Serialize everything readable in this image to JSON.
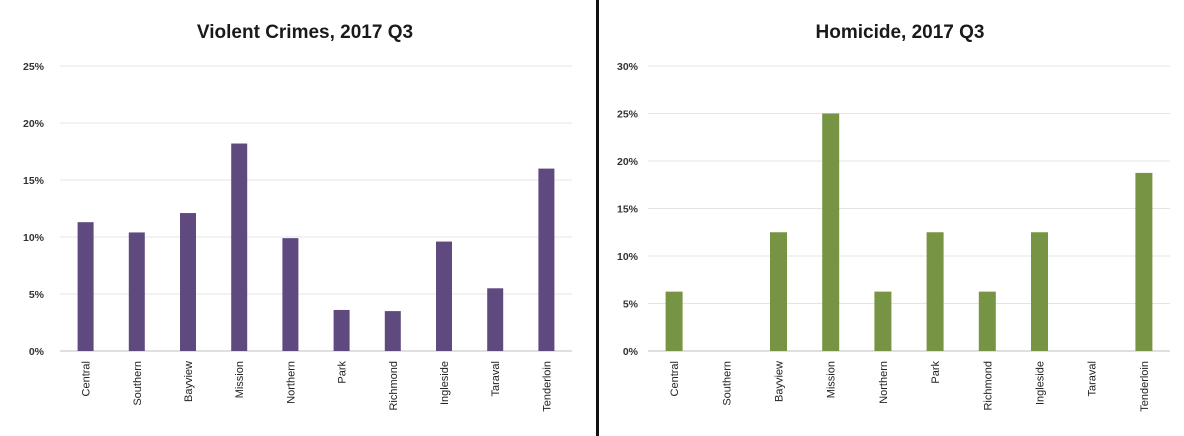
{
  "chart_data": [
    {
      "type": "bar",
      "title": "Violent Crimes, 2017 Q3",
      "categories": [
        "Central",
        "Southern",
        "Bayview",
        "Mission",
        "Northern",
        "Park",
        "Richmond",
        "Ingleside",
        "Taraval",
        "Tenderloin"
      ],
      "values": [
        11.3,
        10.4,
        12.1,
        18.2,
        9.9,
        3.6,
        3.5,
        9.6,
        5.5,
        16.0
      ],
      "yticks": [
        "0%",
        "5%",
        "10%",
        "15%",
        "20%",
        "25%"
      ],
      "ylim": [
        0,
        25
      ],
      "grid": true,
      "color": "#5e4a7e"
    },
    {
      "type": "bar",
      "title": "Homicide, 2017 Q3",
      "categories": [
        "Central",
        "Southern",
        "Bayview",
        "Mission",
        "Northern",
        "Park",
        "Richmond",
        "Ingleside",
        "Taraval",
        "Tenderloin"
      ],
      "values": [
        6.25,
        0,
        12.5,
        25,
        6.25,
        12.5,
        6.25,
        12.5,
        0,
        18.75
      ],
      "yticks": [
        "0%",
        "5%",
        "10%",
        "15%",
        "20%",
        "25%",
        "30%"
      ],
      "ylim": [
        0,
        30
      ],
      "grid": true,
      "color": "#779445"
    }
  ]
}
